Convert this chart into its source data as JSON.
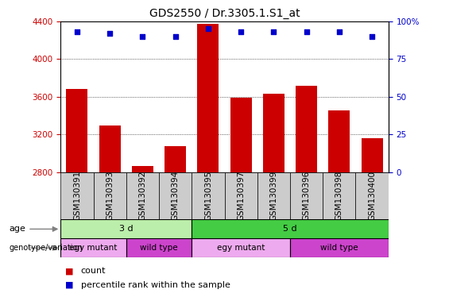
{
  "title": "GDS2550 / Dr.3305.1.S1_at",
  "samples": [
    "GSM130391",
    "GSM130393",
    "GSM130392",
    "GSM130394",
    "GSM130395",
    "GSM130397",
    "GSM130399",
    "GSM130396",
    "GSM130398",
    "GSM130400"
  ],
  "counts": [
    3680,
    3300,
    2870,
    3080,
    4370,
    3590,
    3630,
    3720,
    3460,
    3160
  ],
  "percentiles": [
    93,
    92,
    90,
    90,
    95,
    93,
    93,
    93,
    93,
    90
  ],
  "ylim_left": [
    2800,
    4400
  ],
  "ylim_right": [
    0,
    100
  ],
  "yticks_left": [
    2800,
    3200,
    3600,
    4000,
    4400
  ],
  "yticks_right": [
    0,
    25,
    50,
    75,
    100
  ],
  "bar_color": "#cc0000",
  "dot_color": "#0000cc",
  "bar_bottom": 2800,
  "age_groups": [
    {
      "label": "3 d",
      "start": 0,
      "end": 4,
      "color": "#bbeeaa"
    },
    {
      "label": "5 d",
      "start": 4,
      "end": 10,
      "color": "#44cc44"
    }
  ],
  "genotype_groups": [
    {
      "label": "egy mutant",
      "start": 0,
      "end": 2,
      "color": "#eeaaee"
    },
    {
      "label": "wild type",
      "start": 2,
      "end": 4,
      "color": "#cc44cc"
    },
    {
      "label": "egy mutant",
      "start": 4,
      "end": 7,
      "color": "#eeaaee"
    },
    {
      "label": "wild type",
      "start": 7,
      "end": 10,
      "color": "#cc44cc"
    }
  ],
  "legend_count_color": "#cc0000",
  "legend_dot_color": "#0000cc",
  "axis_label_color_left": "#cc0000",
  "axis_label_color_right": "#0000cc",
  "grid_color": "#000000",
  "background_color": "#ffffff",
  "title_fontsize": 10,
  "tick_fontsize": 7.5,
  "label_fontsize": 8
}
